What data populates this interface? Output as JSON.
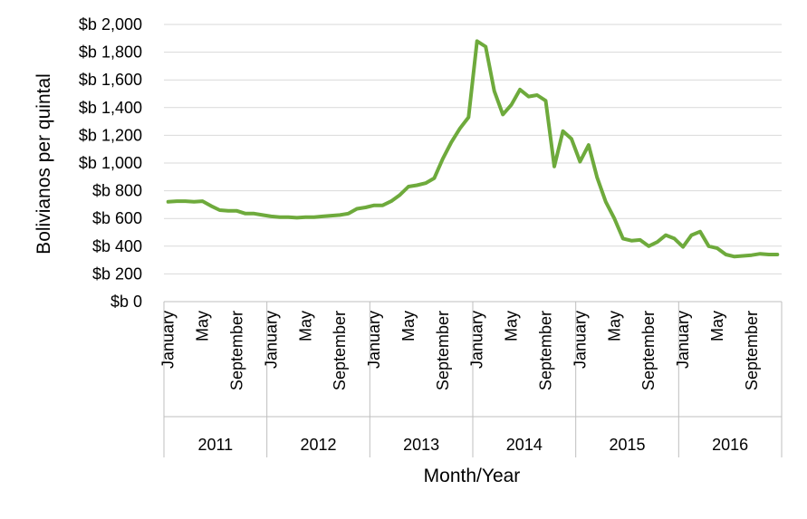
{
  "chart_data": {
    "type": "line",
    "xlabel": "Month/Year",
    "ylabel": "Bolivianos per quintal",
    "ylim": [
      0,
      2000
    ],
    "y_ticks": [
      0,
      200,
      400,
      600,
      800,
      1000,
      1200,
      1400,
      1600,
      1800,
      2000
    ],
    "y_tick_labels": [
      "$b 0",
      "$b 200",
      "$b 400",
      "$b 600",
      "$b 800",
      "$b 1,000",
      "$b 1,200",
      "$b 1,400",
      "$b 1,600",
      "$b 1,800",
      "$b 2,000"
    ],
    "grid": true,
    "legend": "none",
    "line_color": "#6eaa3c",
    "years": [
      "2011",
      "2012",
      "2013",
      "2014",
      "2015",
      "2016"
    ],
    "month_labels": [
      "January",
      "May",
      "September"
    ],
    "x": [
      "2011-01",
      "2011-02",
      "2011-03",
      "2011-04",
      "2011-05",
      "2011-06",
      "2011-07",
      "2011-08",
      "2011-09",
      "2011-10",
      "2011-11",
      "2011-12",
      "2012-01",
      "2012-02",
      "2012-03",
      "2012-04",
      "2012-05",
      "2012-06",
      "2012-07",
      "2012-08",
      "2012-09",
      "2012-10",
      "2012-11",
      "2012-12",
      "2013-01",
      "2013-02",
      "2013-03",
      "2013-04",
      "2013-05",
      "2013-06",
      "2013-07",
      "2013-08",
      "2013-09",
      "2013-10",
      "2013-11",
      "2013-12",
      "2014-01",
      "2014-02",
      "2014-03",
      "2014-04",
      "2014-05",
      "2014-06",
      "2014-07",
      "2014-08",
      "2014-09",
      "2014-10",
      "2014-11",
      "2014-12",
      "2015-01",
      "2015-02",
      "2015-03",
      "2015-04",
      "2015-05",
      "2015-06",
      "2015-07",
      "2015-08",
      "2015-09",
      "2015-10",
      "2015-11",
      "2015-12",
      "2016-01",
      "2016-02",
      "2016-03",
      "2016-04",
      "2016-05",
      "2016-06",
      "2016-07",
      "2016-08",
      "2016-09",
      "2016-10",
      "2016-11",
      "2016-12"
    ],
    "values": [
      720,
      725,
      725,
      720,
      725,
      690,
      660,
      655,
      655,
      635,
      635,
      625,
      615,
      610,
      610,
      605,
      610,
      610,
      615,
      620,
      625,
      635,
      670,
      680,
      695,
      695,
      725,
      770,
      830,
      840,
      855,
      890,
      1030,
      1150,
      1250,
      1330,
      1880,
      1840,
      1520,
      1350,
      1420,
      1530,
      1480,
      1490,
      1450,
      975,
      1230,
      1175,
      1010,
      1130,
      895,
      720,
      600,
      455,
      440,
      445,
      400,
      430,
      480,
      455,
      395,
      480,
      505,
      400,
      385,
      340,
      325,
      330,
      335,
      345,
      340,
      340
    ]
  }
}
